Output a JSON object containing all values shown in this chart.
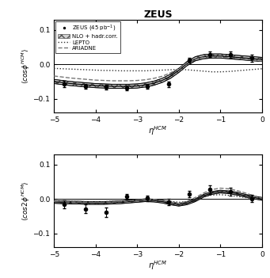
{
  "title": "ZEUS",
  "xlim": [
    -5,
    0
  ],
  "yticks": [
    -0.1,
    0,
    0.1
  ],
  "data_x1": [
    -4.75,
    -4.25,
    -3.75,
    -3.25,
    -2.75,
    -2.25,
    -1.75,
    -1.25,
    -0.75,
    -0.25
  ],
  "data_y1": [
    -0.057,
    -0.065,
    -0.066,
    -0.068,
    -0.065,
    -0.058,
    0.012,
    0.028,
    0.028,
    0.018
  ],
  "data_yerr1": [
    0.009,
    0.007,
    0.007,
    0.007,
    0.007,
    0.008,
    0.007,
    0.008,
    0.009,
    0.01
  ],
  "data_x2": [
    -4.75,
    -4.25,
    -3.75,
    -3.25,
    -2.75,
    -2.25,
    -1.75,
    -1.25,
    -0.75,
    -0.25
  ],
  "data_y2": [
    -0.015,
    -0.028,
    -0.038,
    0.007,
    0.003,
    -0.008,
    0.015,
    0.028,
    0.022,
    0.002
  ],
  "data_yerr2": [
    0.011,
    0.012,
    0.013,
    0.009,
    0.008,
    0.009,
    0.01,
    0.012,
    0.012,
    0.01
  ],
  "nlo_x": [
    -5.0,
    -4.8,
    -4.6,
    -4.4,
    -4.2,
    -4.0,
    -3.8,
    -3.6,
    -3.4,
    -3.2,
    -3.0,
    -2.8,
    -2.6,
    -2.4,
    -2.2,
    -2.0,
    -1.8,
    -1.6,
    -1.4,
    -1.2,
    -1.0,
    -0.8,
    -0.6,
    -0.4,
    -0.2,
    0.0
  ],
  "nlo_y1_center": [
    -0.05,
    -0.053,
    -0.056,
    -0.058,
    -0.06,
    -0.062,
    -0.063,
    -0.064,
    -0.064,
    -0.064,
    -0.063,
    -0.06,
    -0.055,
    -0.047,
    -0.035,
    -0.018,
    0.002,
    0.016,
    0.022,
    0.024,
    0.024,
    0.022,
    0.02,
    0.018,
    0.016,
    0.014
  ],
  "nlo_y1_upper": [
    -0.044,
    -0.047,
    -0.05,
    -0.052,
    -0.054,
    -0.056,
    -0.057,
    -0.058,
    -0.058,
    -0.058,
    -0.057,
    -0.054,
    -0.049,
    -0.041,
    -0.029,
    -0.012,
    0.008,
    0.022,
    0.028,
    0.03,
    0.03,
    0.028,
    0.026,
    0.024,
    0.022,
    0.02
  ],
  "nlo_y1_lower": [
    -0.056,
    -0.059,
    -0.062,
    -0.064,
    -0.066,
    -0.068,
    -0.069,
    -0.07,
    -0.07,
    -0.07,
    -0.069,
    -0.066,
    -0.061,
    -0.053,
    -0.041,
    -0.024,
    -0.004,
    0.01,
    0.016,
    0.018,
    0.018,
    0.016,
    0.014,
    0.012,
    0.01,
    0.008
  ],
  "nlo_y2_center": [
    -0.008,
    -0.009,
    -0.01,
    -0.01,
    -0.011,
    -0.011,
    -0.011,
    -0.01,
    -0.009,
    -0.007,
    -0.005,
    -0.003,
    -0.004,
    -0.007,
    -0.012,
    -0.016,
    -0.012,
    -0.003,
    0.01,
    0.018,
    0.022,
    0.02,
    0.016,
    0.01,
    0.005,
    0.001
  ],
  "nlo_y2_upper": [
    -0.004,
    -0.005,
    -0.006,
    -0.006,
    -0.007,
    -0.007,
    -0.007,
    -0.006,
    -0.005,
    -0.003,
    -0.001,
    0.001,
    0.0,
    -0.003,
    -0.008,
    -0.012,
    -0.008,
    0.001,
    0.014,
    0.022,
    0.026,
    0.024,
    0.02,
    0.014,
    0.009,
    0.005
  ],
  "nlo_y2_lower": [
    -0.012,
    -0.013,
    -0.014,
    -0.014,
    -0.015,
    -0.015,
    -0.015,
    -0.014,
    -0.013,
    -0.011,
    -0.009,
    -0.007,
    -0.008,
    -0.011,
    -0.016,
    -0.02,
    -0.016,
    -0.007,
    0.006,
    0.014,
    0.018,
    0.016,
    0.012,
    0.006,
    0.001,
    -0.003
  ],
  "lepto_y1": [
    -0.012,
    -0.013,
    -0.014,
    -0.015,
    -0.016,
    -0.017,
    -0.018,
    -0.018,
    -0.019,
    -0.019,
    -0.019,
    -0.019,
    -0.018,
    -0.017,
    -0.016,
    -0.015,
    -0.016,
    -0.018,
    -0.02,
    -0.022,
    -0.022,
    -0.021,
    -0.019,
    -0.017,
    -0.015,
    -0.013
  ],
  "lepto_y2": [
    -0.005,
    -0.006,
    -0.006,
    -0.007,
    -0.007,
    -0.007,
    -0.007,
    -0.006,
    -0.005,
    -0.004,
    -0.003,
    -0.002,
    -0.002,
    -0.004,
    -0.006,
    -0.009,
    -0.007,
    -0.001,
    0.007,
    0.012,
    0.013,
    0.011,
    0.008,
    0.005,
    0.002,
    0.0
  ],
  "ariadne_y1": [
    -0.034,
    -0.037,
    -0.04,
    -0.042,
    -0.044,
    -0.046,
    -0.047,
    -0.048,
    -0.048,
    -0.048,
    -0.047,
    -0.045,
    -0.041,
    -0.035,
    -0.025,
    -0.012,
    0.004,
    0.015,
    0.02,
    0.022,
    0.021,
    0.019,
    0.017,
    0.014,
    0.012,
    0.009
  ],
  "ariadne_y2": [
    -0.006,
    -0.007,
    -0.008,
    -0.008,
    -0.009,
    -0.009,
    -0.009,
    -0.008,
    -0.007,
    -0.005,
    -0.003,
    -0.001,
    -0.001,
    -0.004,
    -0.008,
    -0.012,
    -0.006,
    0.005,
    0.018,
    0.028,
    0.032,
    0.03,
    0.025,
    0.018,
    0.01,
    0.003
  ],
  "nlo_hatch": "xxx",
  "nlo_fill_color": "#d0d0d0",
  "nlo_edge_color": "#555555",
  "nlo_center_color": "#000000",
  "lepto_color": "#333333",
  "ariadne_color": "#777777",
  "data_color": "#000000"
}
